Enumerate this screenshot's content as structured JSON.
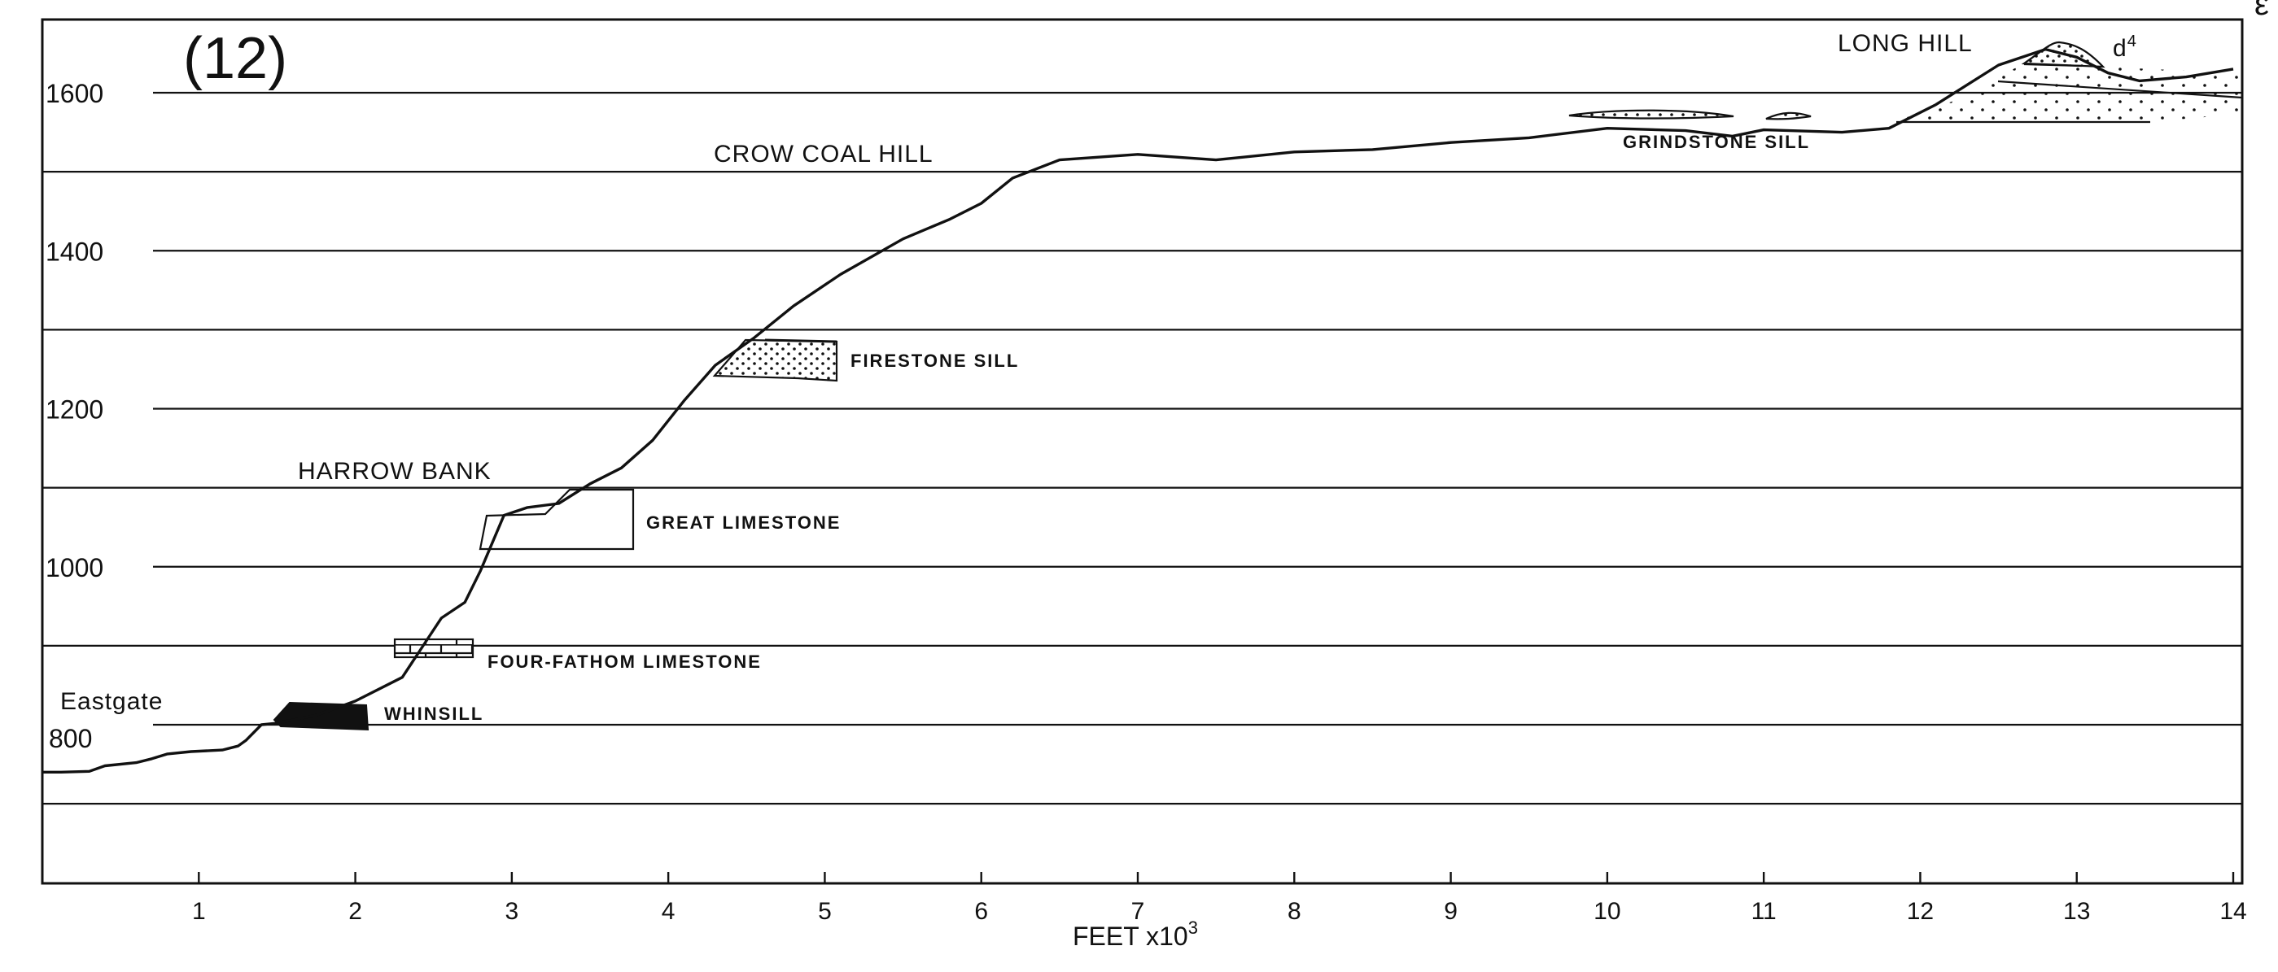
{
  "figure": {
    "panel_label": "(12)",
    "x_axis_title": "FEET x10",
    "x_axis_exponent": "3",
    "x_ticks": [
      "1",
      "2",
      "3",
      "4",
      "5",
      "6",
      "7",
      "8",
      "9",
      "10",
      "11",
      "12",
      "13",
      "14"
    ],
    "y_ticks": [
      "800",
      "1000",
      "1200",
      "1400",
      "1600"
    ],
    "locations": {
      "eastgate": "Eastgate",
      "harrow_bank": "HARROW BANK",
      "crow_coal_hill": "CROW COAL HILL",
      "long_hill": "LONG HILL"
    },
    "beds": {
      "whinsill": "WHINSILL",
      "four_fathom": "FOUR-FATHOM LIMESTONE",
      "great_limestone": "GREAT LIMESTONE",
      "firestone_sill": "FIRESTONE SILL",
      "grindstone_sill": "GRINDSTONE SILL",
      "d4": "d",
      "d4_superscript": "4"
    }
  },
  "chart_data": {
    "type": "line",
    "xlabel": "FEET x10^3",
    "xlim": [
      0,
      14
    ],
    "ylim": [
      600,
      1700
    ],
    "profile": [
      [
        0.0,
        740
      ],
      [
        0.12,
        740
      ],
      [
        0.3,
        741
      ],
      [
        0.4,
        748
      ],
      [
        0.6,
        752
      ],
      [
        0.7,
        757
      ],
      [
        0.8,
        763
      ],
      [
        0.95,
        766
      ],
      [
        1.15,
        768
      ],
      [
        1.25,
        773
      ],
      [
        1.3,
        780
      ],
      [
        1.4,
        800
      ],
      [
        1.5,
        802
      ],
      [
        1.75,
        812
      ],
      [
        2.0,
        830
      ],
      [
        2.3,
        860
      ],
      [
        2.45,
        905
      ],
      [
        2.55,
        935
      ],
      [
        2.7,
        955
      ],
      [
        2.8,
        995
      ],
      [
        2.95,
        1065
      ],
      [
        3.1,
        1075
      ],
      [
        3.3,
        1080
      ],
      [
        3.5,
        1105
      ],
      [
        3.7,
        1125
      ],
      [
        3.9,
        1160
      ],
      [
        4.1,
        1210
      ],
      [
        4.3,
        1255
      ],
      [
        4.55,
        1290
      ],
      [
        4.8,
        1330
      ],
      [
        5.1,
        1370
      ],
      [
        5.5,
        1415
      ],
      [
        5.8,
        1440
      ],
      [
        6.0,
        1460
      ],
      [
        6.2,
        1492
      ],
      [
        6.5,
        1515
      ],
      [
        7.0,
        1522
      ],
      [
        7.5,
        1515
      ],
      [
        8.0,
        1525
      ],
      [
        8.5,
        1528
      ],
      [
        9.0,
        1537
      ],
      [
        9.5,
        1543
      ],
      [
        10.0,
        1555
      ],
      [
        10.5,
        1552
      ],
      [
        10.8,
        1545
      ],
      [
        11.0,
        1553
      ],
      [
        11.5,
        1550
      ],
      [
        11.8,
        1555
      ],
      [
        12.1,
        1585
      ],
      [
        12.5,
        1635
      ],
      [
        12.8,
        1655
      ],
      [
        13.0,
        1645
      ],
      [
        13.2,
        1625
      ],
      [
        13.4,
        1615
      ],
      [
        13.7,
        1620
      ],
      [
        14.0,
        1630
      ]
    ]
  }
}
